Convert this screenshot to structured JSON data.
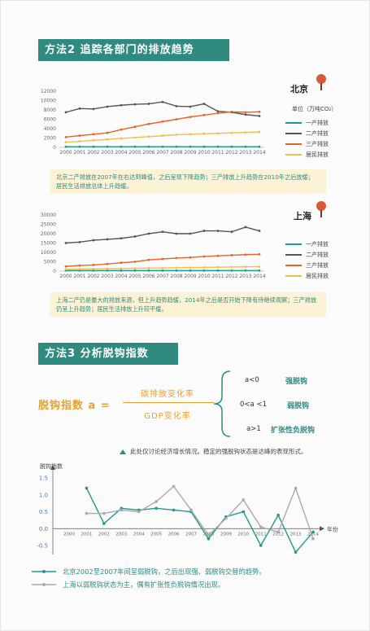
{
  "section2": {
    "title": "方法2  追踪各部门的排放趋势"
  },
  "colors": {
    "primary": "#1f9a8c",
    "secondary": "#555555",
    "tertiary": "#e8622c",
    "residential": "#f0c04a",
    "gray": "#aaaaaa",
    "accent": "#e8a22c"
  },
  "beijing": {
    "city": "北京",
    "unit": "单位（万吨CO₂）",
    "note": "北京二产排放在2007年在右达到峰值，之后呈现下降趋势；三产排放上升趋势在2010年之后放缓；居民生活排放总体上升趋缓。"
  },
  "shanghai": {
    "city": "上海",
    "note": "上海二产仍是最大的排放来源，但上升趋势趋缓，2014年之后是否开始下降有待继续观察；三产排放仍呈上升趋势；居民生活排放上升较平缓。"
  },
  "section3": {
    "title": "方法3   分析脱钩指数"
  },
  "formula": {
    "left": "脱钩指数 a =",
    "numerator": "碳排放变化率",
    "denominator": "GDP变化率",
    "conditions": [
      {
        "cond": "a<0",
        "label": "强脱钩"
      },
      {
        "cond": "0<a <1",
        "label": "弱脱钩"
      },
      {
        "cond": "a>1",
        "label": "扩张性负脱钩"
      }
    ]
  },
  "caption": "此处仅讨论经济增长情况。稳定的强脱钩状态是达峰的表现形式。",
  "chart_data": [
    {
      "type": "line",
      "years": [
        "2000",
        "2001",
        "2002",
        "2003",
        "2004",
        "2005",
        "2006",
        "2007",
        "2008",
        "2009",
        "2010",
        "2011",
        "2012",
        "2013",
        "2014"
      ],
      "ylim": [
        0,
        12000
      ],
      "yticks": [
        "0",
        "2000",
        "4000",
        "6000",
        "8000",
        "10000",
        "12000"
      ],
      "series": [
        {
          "name": "一产排放",
          "color": "#1f9a8c",
          "values": [
            150,
            150,
            150,
            150,
            150,
            150,
            150,
            150,
            150,
            150,
            150,
            150,
            140,
            140,
            140
          ]
        },
        {
          "name": "二产排放",
          "color": "#555555",
          "values": [
            7500,
            8300,
            8200,
            8700,
            9000,
            9200,
            9300,
            9700,
            8800,
            8700,
            9300,
            7700,
            7500,
            7000,
            6700
          ]
        },
        {
          "name": "三产排放",
          "color": "#e8622c",
          "values": [
            2200,
            2500,
            2800,
            3100,
            3800,
            4400,
            5000,
            5500,
            6000,
            6500,
            6900,
            7300,
            7600,
            7500,
            7600
          ]
        },
        {
          "name": "居民排放",
          "color": "#f0c04a",
          "values": [
            1100,
            1300,
            1500,
            1700,
            1900,
            2100,
            2300,
            2500,
            2700,
            2800,
            2900,
            3000,
            3100,
            3200,
            3300
          ]
        }
      ]
    },
    {
      "type": "line",
      "years": [
        "2000",
        "2001",
        "2002",
        "2003",
        "2004",
        "2005",
        "2006",
        "2007",
        "2008",
        "2009",
        "2010",
        "2011",
        "2012",
        "2013",
        "2014"
      ],
      "ylim": [
        0,
        30000
      ],
      "yticks": [
        "0",
        "5000",
        "10000",
        "15000",
        "20000",
        "25000",
        "30000"
      ],
      "series": [
        {
          "name": "一产排放",
          "color": "#1f9a8c",
          "values": [
            300,
            300,
            300,
            300,
            300,
            300,
            300,
            300,
            300,
            300,
            300,
            300,
            300,
            300,
            300
          ]
        },
        {
          "name": "二产排放",
          "color": "#555555",
          "values": [
            15000,
            15500,
            16500,
            17000,
            17500,
            18500,
            20000,
            21000,
            20000,
            20000,
            21500,
            21500,
            21000,
            23500,
            21500
          ]
        },
        {
          "name": "三产排放",
          "color": "#e8622c",
          "values": [
            2500,
            3000,
            3300,
            3800,
            4500,
            5000,
            6000,
            6500,
            7000,
            7300,
            7800,
            8200,
            8500,
            8800,
            9000
          ]
        },
        {
          "name": "居民排放",
          "color": "#f0c04a",
          "values": [
            1000,
            1100,
            1200,
            1300,
            1400,
            1500,
            1600,
            1700,
            1800,
            1900,
            2000,
            2100,
            2200,
            2300,
            2400
          ]
        }
      ]
    },
    {
      "type": "line",
      "ylabel": "脱钩指数",
      "xlabel": "年份",
      "years": [
        "2000",
        "2001",
        "2002",
        "2003",
        "2004",
        "2005",
        "2006",
        "2007",
        "2008",
        "2009",
        "2010",
        "2011",
        "2012",
        "2013",
        "2014"
      ],
      "ylim": [
        -0.5,
        1.5
      ],
      "yticks": [
        "-0.5",
        "0.0",
        "0.5",
        "1.0",
        "1.5"
      ],
      "series": [
        {
          "name": "北京",
          "color": "#1f9a8c",
          "start": 1,
          "values": [
            1.2,
            0.15,
            0.6,
            0.55,
            0.6,
            0.55,
            0.5,
            -0.3,
            0.35,
            0.5,
            -0.5,
            0.4,
            -0.7,
            -0.1
          ]
        },
        {
          "name": "上海",
          "color": "#aaaaaa",
          "start": 1,
          "values": [
            0.45,
            0.45,
            0.55,
            0.5,
            0.8,
            1.25,
            0.55,
            -0.2,
            0.3,
            0.85,
            0.05,
            -0.1,
            1.2,
            -0.3
          ]
        }
      ],
      "legend": [
        "北京2002至2007年间呈弱脱钩，之后出现强、弱脱钩交替的趋势。",
        "上海以弱脱钩状态为主，偶有扩张性负脱钩情况出现。"
      ]
    }
  ]
}
